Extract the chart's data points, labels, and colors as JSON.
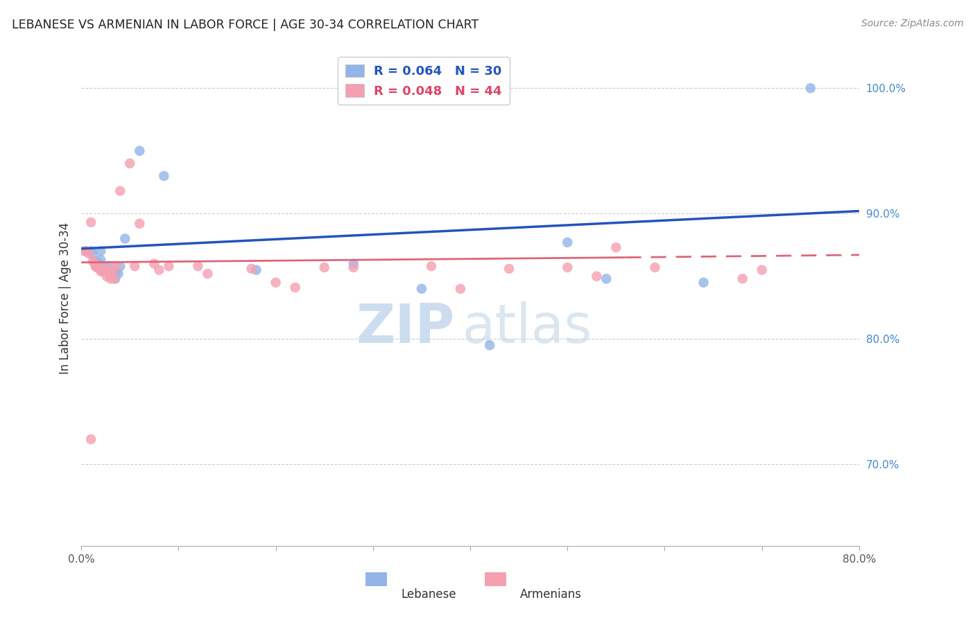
{
  "title": "LEBANESE VS ARMENIAN IN LABOR FORCE | AGE 30-34 CORRELATION CHART",
  "source": "Source: ZipAtlas.com",
  "ylabel": "In Labor Force | Age 30-34",
  "ytick_labels": [
    "100.0%",
    "90.0%",
    "80.0%",
    "70.0%"
  ],
  "ytick_values": [
    1.0,
    0.9,
    0.8,
    0.7
  ],
  "xlim": [
    0.0,
    0.8
  ],
  "ylim": [
    0.635,
    1.03
  ],
  "legend_blue_r": "R = 0.064",
  "legend_blue_n": "N = 30",
  "legend_pink_r": "R = 0.048",
  "legend_pink_n": "N = 44",
  "legend_label_blue": "Lebanese",
  "legend_label_pink": "Armenians",
  "blue_color": "#92b4e8",
  "pink_color": "#f4a0b0",
  "blue_line_color": "#2255bb",
  "pink_line_color": "#dd6677",
  "watermark_zip": "ZIP",
  "watermark_atlas": "atlas",
  "blue_x": [
    0.005,
    0.01,
    0.012,
    0.015,
    0.015,
    0.018,
    0.02,
    0.02,
    0.022,
    0.025,
    0.025,
    0.028,
    0.03,
    0.03,
    0.032,
    0.035,
    0.035,
    0.038,
    0.04,
    0.045,
    0.06,
    0.085,
    0.18,
    0.28,
    0.35,
    0.42,
    0.5,
    0.54,
    0.64,
    0.75
  ],
  "blue_y": [
    0.87,
    0.87,
    0.868,
    0.862,
    0.858,
    0.86,
    0.87,
    0.863,
    0.858,
    0.856,
    0.857,
    0.855,
    0.852,
    0.858,
    0.854,
    0.853,
    0.848,
    0.852,
    0.858,
    0.88,
    0.95,
    0.93,
    0.855,
    0.86,
    0.84,
    0.795,
    0.877,
    0.848,
    0.845,
    1.0
  ],
  "pink_x": [
    0.003,
    0.005,
    0.008,
    0.01,
    0.01,
    0.012,
    0.014,
    0.015,
    0.016,
    0.018,
    0.02,
    0.02,
    0.022,
    0.025,
    0.026,
    0.028,
    0.03,
    0.03,
    0.032,
    0.034,
    0.036,
    0.04,
    0.05,
    0.055,
    0.06,
    0.075,
    0.08,
    0.09,
    0.12,
    0.13,
    0.175,
    0.2,
    0.22,
    0.25,
    0.28,
    0.36,
    0.39,
    0.44,
    0.5,
    0.53,
    0.55,
    0.59,
    0.68,
    0.7
  ],
  "pink_y": [
    0.87,
    0.87,
    0.868,
    0.893,
    0.72,
    0.862,
    0.86,
    0.858,
    0.857,
    0.857,
    0.856,
    0.854,
    0.854,
    0.858,
    0.85,
    0.854,
    0.852,
    0.848,
    0.853,
    0.848,
    0.858,
    0.918,
    0.94,
    0.858,
    0.892,
    0.86,
    0.855,
    0.858,
    0.858,
    0.852,
    0.856,
    0.845,
    0.841,
    0.857,
    0.857,
    0.858,
    0.84,
    0.856,
    0.857,
    0.85,
    0.873,
    0.857,
    0.848,
    0.855
  ]
}
